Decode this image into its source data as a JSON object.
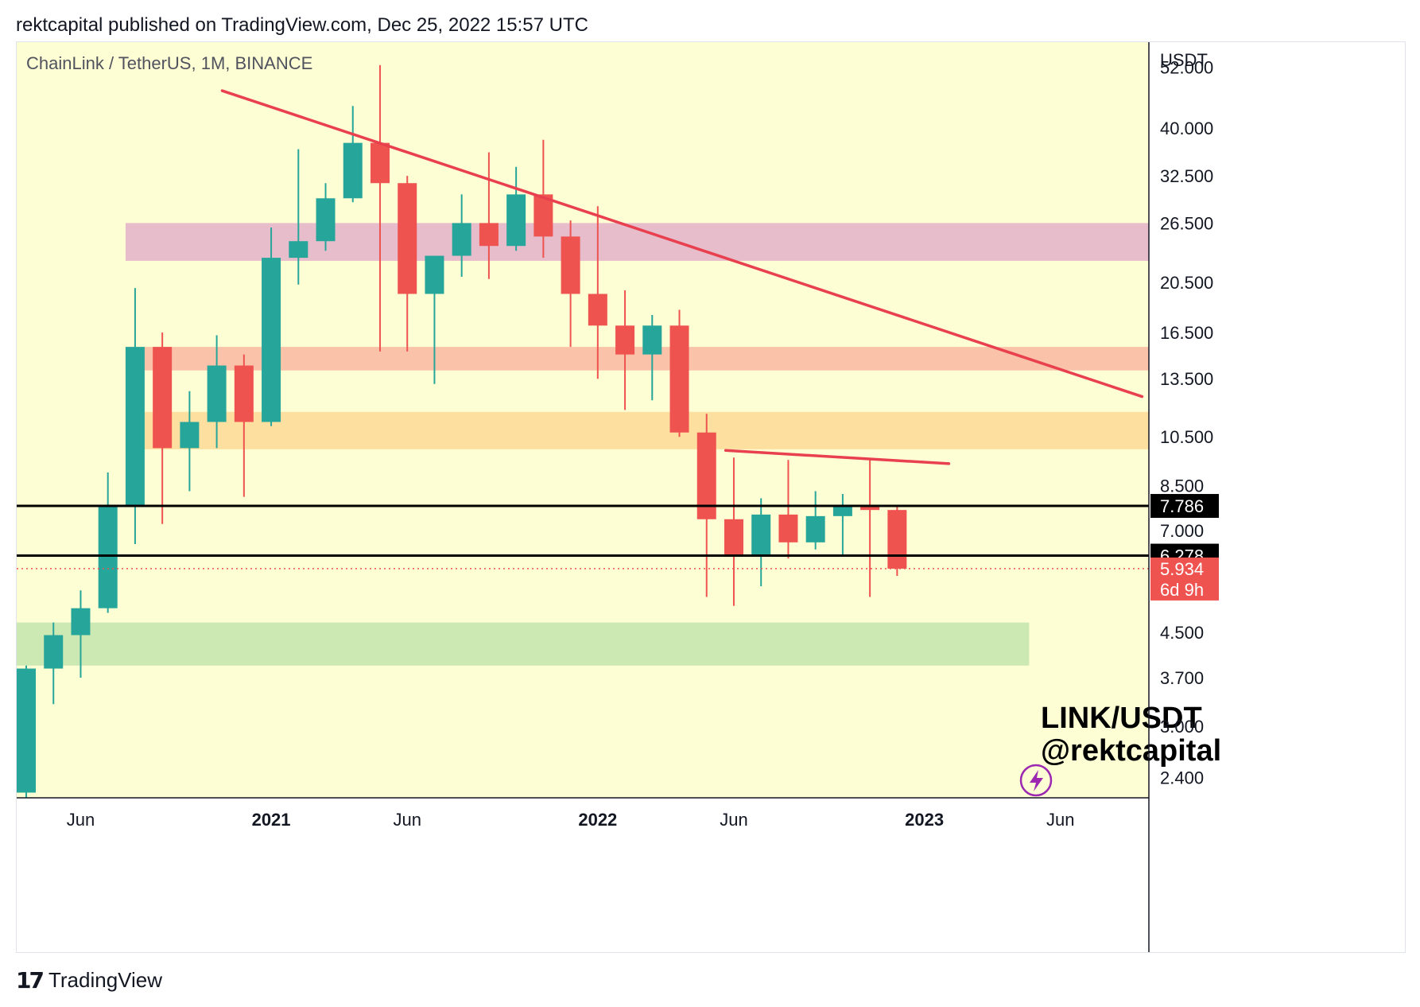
{
  "header": {
    "text": "rektcapital published on TradingView.com, Dec 25, 2022 15:57 UTC"
  },
  "footer": {
    "brand": "TradingView",
    "logo_glyph": "17"
  },
  "chart_data": {
    "type": "candlestick",
    "symbol": "ChainLink / TetherUS, 1M, BINANCE",
    "currency": "USDT",
    "watermark": [
      "LINK/USDT",
      "@rektcapital"
    ],
    "y_scale": "log",
    "ylim": [
      2.2,
      58
    ],
    "y_ticks": [
      2.4,
      3.0,
      3.7,
      4.5,
      7.0,
      8.5,
      10.5,
      13.5,
      16.5,
      20.5,
      26.5,
      32.5,
      40.0,
      52.0
    ],
    "y_tick_labels": [
      "2.400",
      "3.000",
      "3.700",
      "4.500",
      "7.000",
      "8.500",
      "10.500",
      "13.500",
      "16.500",
      "20.500",
      "26.500",
      "32.500",
      "40.000",
      "52.000"
    ],
    "x_ticks": [
      {
        "i": 2,
        "label": "Jun",
        "bold": false
      },
      {
        "i": 9,
        "label": "2021",
        "bold": true
      },
      {
        "i": 14,
        "label": "Jun",
        "bold": false
      },
      {
        "i": 21,
        "label": "2022",
        "bold": true
      },
      {
        "i": 26,
        "label": "Jun",
        "bold": false
      },
      {
        "i": 33,
        "label": "2023",
        "bold": true
      },
      {
        "i": 38,
        "label": "Jun",
        "bold": false
      }
    ],
    "candles": [
      {
        "date": "2020-04",
        "open": 2.25,
        "high": 3.9,
        "low": 2.15,
        "close": 3.85
      },
      {
        "date": "2020-05",
        "open": 3.85,
        "high": 4.7,
        "low": 3.3,
        "close": 4.45
      },
      {
        "date": "2020-06",
        "open": 4.45,
        "high": 5.4,
        "low": 3.7,
        "close": 5.0
      },
      {
        "date": "2020-07",
        "open": 5.0,
        "high": 9.0,
        "low": 4.9,
        "close": 7.8
      },
      {
        "date": "2020-08",
        "open": 7.8,
        "high": 20.0,
        "low": 6.6,
        "close": 15.5
      },
      {
        "date": "2020-09",
        "open": 15.5,
        "high": 16.5,
        "low": 7.2,
        "close": 10.0
      },
      {
        "date": "2020-10",
        "open": 10.0,
        "high": 12.8,
        "low": 8.3,
        "close": 11.2
      },
      {
        "date": "2020-11",
        "open": 11.2,
        "high": 16.3,
        "low": 10.0,
        "close": 14.3
      },
      {
        "date": "2020-12",
        "open": 14.3,
        "high": 15.0,
        "low": 8.1,
        "close": 11.2
      },
      {
        "date": "2021-01",
        "open": 11.2,
        "high": 26.0,
        "low": 11.0,
        "close": 22.8
      },
      {
        "date": "2021-02",
        "open": 22.8,
        "high": 36.5,
        "low": 20.3,
        "close": 24.5
      },
      {
        "date": "2021-03",
        "open": 24.5,
        "high": 31.5,
        "low": 23.5,
        "close": 29.5
      },
      {
        "date": "2021-04",
        "open": 29.5,
        "high": 44.0,
        "low": 29.0,
        "close": 37.5
      },
      {
        "date": "2021-05",
        "open": 37.5,
        "high": 52.5,
        "low": 15.2,
        "close": 31.5
      },
      {
        "date": "2021-06",
        "open": 31.5,
        "high": 32.5,
        "low": 15.2,
        "close": 19.5
      },
      {
        "date": "2021-07",
        "open": 19.5,
        "high": 22.7,
        "low": 13.2,
        "close": 23.0
      },
      {
        "date": "2021-08",
        "open": 23.0,
        "high": 30.0,
        "low": 21.0,
        "close": 26.5
      },
      {
        "date": "2021-09",
        "open": 26.5,
        "high": 36.0,
        "low": 20.8,
        "close": 24.0
      },
      {
        "date": "2021-10",
        "open": 24.0,
        "high": 33.8,
        "low": 23.5,
        "close": 30.0
      },
      {
        "date": "2021-11",
        "open": 30.0,
        "high": 38.0,
        "low": 22.8,
        "close": 25.0
      },
      {
        "date": "2021-12",
        "open": 25.0,
        "high": 26.8,
        "low": 15.5,
        "close": 19.5
      },
      {
        "date": "2022-01",
        "open": 19.5,
        "high": 28.5,
        "low": 13.5,
        "close": 17.0
      },
      {
        "date": "2022-02",
        "open": 17.0,
        "high": 19.8,
        "low": 11.8,
        "close": 15.0
      },
      {
        "date": "2022-03",
        "open": 15.0,
        "high": 17.8,
        "low": 12.3,
        "close": 17.0
      },
      {
        "date": "2022-04",
        "open": 17.0,
        "high": 18.2,
        "low": 10.5,
        "close": 10.7
      },
      {
        "date": "2022-05",
        "open": 10.7,
        "high": 11.6,
        "low": 5.25,
        "close": 7.35
      },
      {
        "date": "2022-06",
        "open": 7.35,
        "high": 9.6,
        "low": 5.05,
        "close": 6.25
      },
      {
        "date": "2022-07",
        "open": 6.25,
        "high": 8.05,
        "low": 5.5,
        "close": 7.5
      },
      {
        "date": "2022-08",
        "open": 7.5,
        "high": 9.5,
        "low": 6.2,
        "close": 6.65
      },
      {
        "date": "2022-09",
        "open": 6.65,
        "high": 8.3,
        "low": 6.45,
        "close": 7.45
      },
      {
        "date": "2022-10",
        "open": 7.45,
        "high": 8.2,
        "low": 6.3,
        "close": 7.8
      },
      {
        "date": "2022-11",
        "open": 7.8,
        "high": 9.5,
        "low": 5.25,
        "close": 7.65
      },
      {
        "date": "2022-12",
        "open": 7.65,
        "high": 7.75,
        "low": 5.75,
        "close": 5.934
      }
    ],
    "zones": [
      {
        "name": "resistance-zone-pink",
        "low": 22.5,
        "high": 26.5,
        "from_i": 4,
        "to_i": 41,
        "color": "#dda0c8"
      },
      {
        "name": "resistance-zone-salmon",
        "low": 14.0,
        "high": 15.5,
        "from_i": 4,
        "to_i": 41,
        "color": "#f8a897"
      },
      {
        "name": "resistance-zone-orange",
        "low": 9.95,
        "high": 11.7,
        "from_i": 4,
        "to_i": 41,
        "color": "#fcd28a"
      },
      {
        "name": "support-zone-green",
        "low": 3.9,
        "high": 4.7,
        "from_i": -0.5,
        "to_i": 36.5,
        "color": "#b6e0a6"
      }
    ],
    "trendlines": [
      {
        "name": "macro-downtrend-line",
        "i1": 7.2,
        "p1": 47.0,
        "i2": 41.0,
        "p2": 12.5,
        "color": "#e8404e"
      },
      {
        "name": "lower-high-trendline",
        "i1": 25.7,
        "p1": 9.9,
        "i2": 33.9,
        "p2": 9.35,
        "color": "#e8404e"
      }
    ],
    "horizontal_levels": [
      {
        "name": "level-7786",
        "value": 7.786,
        "label": "7.786"
      },
      {
        "name": "level-6278",
        "value": 6.278,
        "label": "6.278"
      }
    ],
    "last_price": {
      "value": 5.934,
      "label": "5.934",
      "countdown": "6d 9h"
    },
    "colors": {
      "background": "#fefed4",
      "up": "#26a69a",
      "down": "#ef5350",
      "level_line": "#000000",
      "axis_text": "#131722",
      "symbol_text": "#50535e",
      "lightning_icon": "#9c27b0"
    }
  }
}
